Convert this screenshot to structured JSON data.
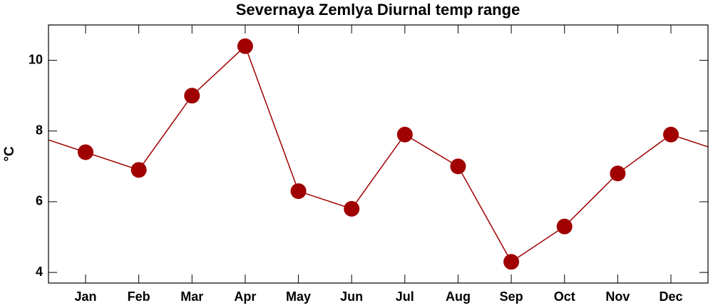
{
  "chart_data": {
    "type": "line",
    "title": "Severnaya Zemlya Diurnal temp range",
    "y_label": "°C",
    "categories": [
      "Jan",
      "Feb",
      "Mar",
      "Apr",
      "May",
      "Jun",
      "Jul",
      "Aug",
      "Sep",
      "Oct",
      "Nov",
      "Dec"
    ],
    "series": [
      {
        "name": "Diurnal temp range",
        "color": "#a00000",
        "values": [
          7.4,
          6.9,
          9.0,
          10.4,
          6.3,
          5.8,
          7.9,
          7.0,
          4.3,
          5.3,
          6.8,
          7.9
        ]
      }
    ],
    "ylim": [
      3.7,
      11
    ],
    "yticks": [
      4,
      6,
      8,
      10
    ],
    "grid": false
  }
}
